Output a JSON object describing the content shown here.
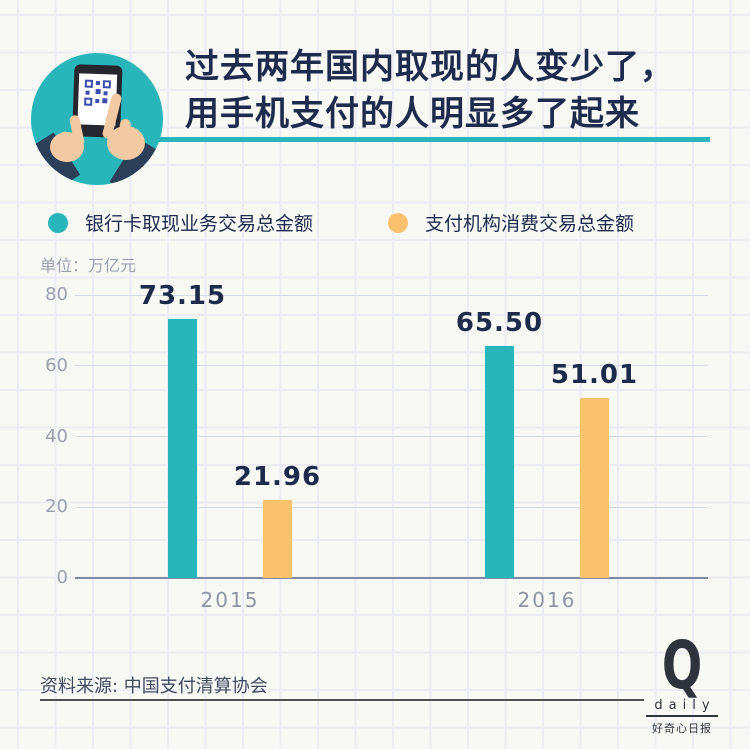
{
  "header": {
    "title_line1": "过去两年国内取现的人变少了，",
    "title_line2": "用手机支付的人明显多了起来"
  },
  "legend": {
    "items": [
      {
        "label": "银行卡取现业务交易总金额",
        "color": "#29b6ba"
      },
      {
        "label": "支付机构消费交易总金额",
        "color": "#fac26f"
      }
    ]
  },
  "unit_label": "单位：万亿元",
  "chart_data": {
    "type": "bar",
    "title": "过去两年国内取现的人变少了，用手机支付的人明显多了起来",
    "categories": [
      "2015",
      "2016"
    ],
    "series": [
      {
        "name": "银行卡取现业务交易总金额",
        "color": "#29b6ba",
        "values": [
          73.15,
          65.5
        ],
        "value_labels": [
          "73.15",
          "65.50"
        ]
      },
      {
        "name": "支付机构消费交易总金额",
        "color": "#fac26f",
        "values": [
          21.96,
          51.01
        ],
        "value_labels": [
          "21.96",
          "51.01"
        ]
      }
    ],
    "ylabel": "单位：万亿元",
    "yticks": [
      0,
      20,
      40,
      60,
      80
    ],
    "ylim": [
      0,
      80
    ],
    "grid": true,
    "legend_position": "top"
  },
  "footer": {
    "source": "资料来源: 中国支付清算协会",
    "logo": {
      "letter": "Q",
      "wordmark": "daily",
      "subtitle": "好奇心日报"
    }
  }
}
